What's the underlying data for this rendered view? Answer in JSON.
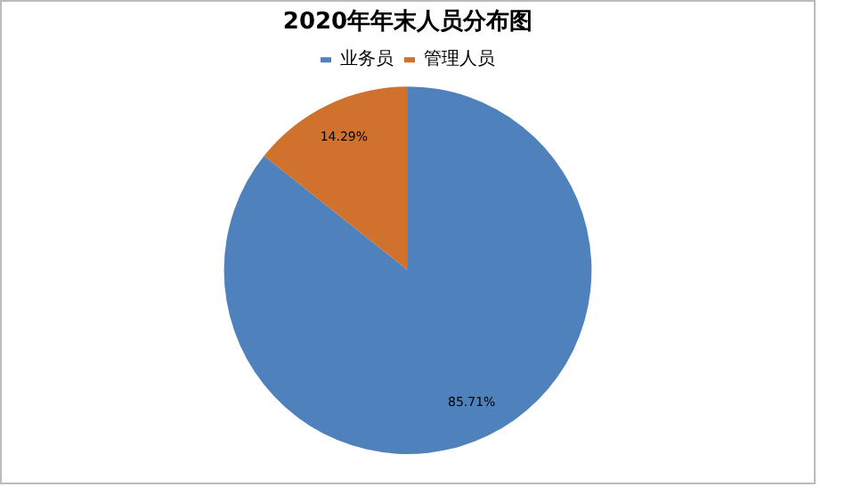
{
  "chart_data": {
    "type": "pie",
    "title": "2020年年末人员分布图",
    "categories": [
      "业务员",
      "管理人员"
    ],
    "values": [
      85.71,
      14.29
    ],
    "value_labels": [
      "85.71%",
      "14.29%"
    ],
    "colors": [
      "#4f81bd",
      "#d0712d"
    ],
    "legend": "top"
  }
}
